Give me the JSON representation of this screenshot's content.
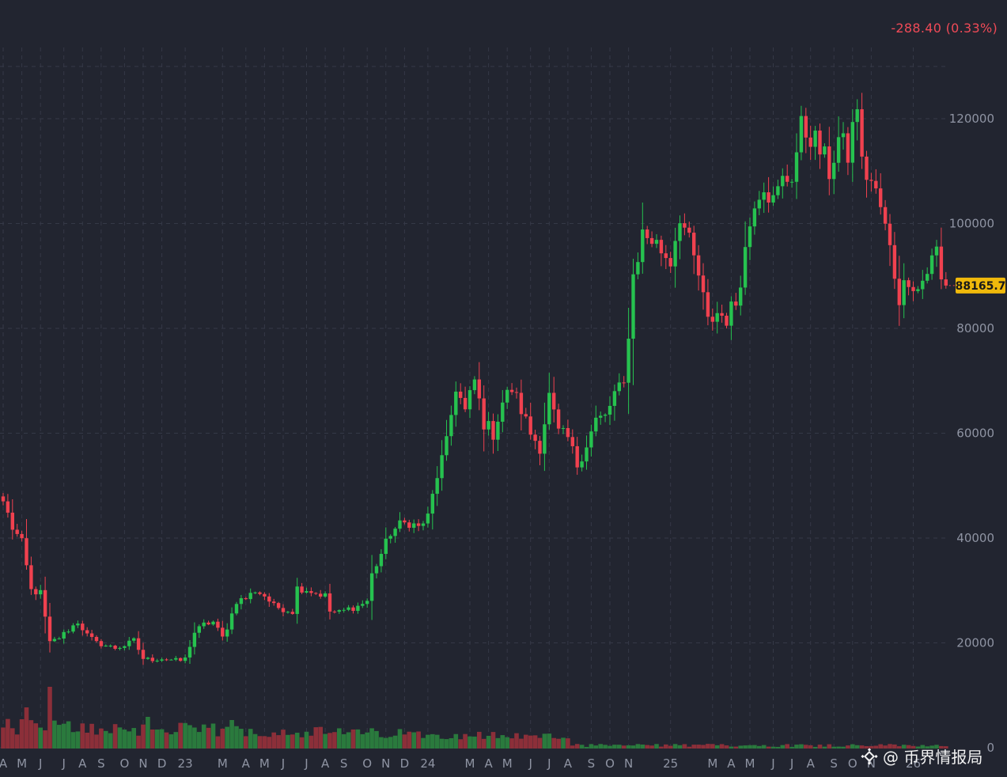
{
  "header": {
    "change_text": "-288.40 (0.33%)",
    "change_color": "#f04a57"
  },
  "watermark": {
    "text": "@ 币界情报局"
  },
  "colors": {
    "background": "#222530",
    "grid": "#353947",
    "up": "#26c24f",
    "down": "#f0414f",
    "axis_text": "#8f94a3",
    "price_badge_bg": "#f0b90b",
    "price_badge_text": "#1a1a1a"
  },
  "chart_data": {
    "type": "candlestick",
    "interval": "weekly",
    "ylim": [
      -5000,
      145000
    ],
    "y_ticks": [
      0,
      20000,
      40000,
      60000,
      80000,
      100000,
      120000
    ],
    "y_tick_labels": [
      "0",
      "20000",
      "40000",
      "60000",
      "80000",
      "100000",
      "120000"
    ],
    "last_price": 88165.7,
    "last_price_label": "88165.7",
    "x_ticks": [
      {
        "label": "A",
        "week": 0
      },
      {
        "label": "M",
        "week": 4
      },
      {
        "label": "J",
        "week": 8
      },
      {
        "label": "J",
        "week": 13
      },
      {
        "label": "A",
        "week": 17
      },
      {
        "label": "S",
        "week": 21
      },
      {
        "label": "O",
        "week": 26
      },
      {
        "label": "N",
        "week": 30
      },
      {
        "label": "D",
        "week": 34
      },
      {
        "label": "23",
        "week": 39
      },
      {
        "label": "M",
        "week": 47
      },
      {
        "label": "A",
        "week": 52
      },
      {
        "label": "M",
        "week": 56
      },
      {
        "label": "J",
        "week": 60
      },
      {
        "label": "J",
        "week": 65
      },
      {
        "label": "A",
        "week": 69
      },
      {
        "label": "S",
        "week": 73
      },
      {
        "label": "O",
        "week": 78
      },
      {
        "label": "N",
        "week": 82
      },
      {
        "label": "D",
        "week": 86
      },
      {
        "label": "24",
        "week": 91
      },
      {
        "label": "M",
        "week": 100
      },
      {
        "label": "A",
        "week": 104
      },
      {
        "label": "M",
        "week": 108
      },
      {
        "label": "J",
        "week": 113
      },
      {
        "label": "J",
        "week": 117
      },
      {
        "label": "A",
        "week": 121
      },
      {
        "label": "S",
        "week": 126
      },
      {
        "label": "O",
        "week": 130
      },
      {
        "label": "N",
        "week": 134
      },
      {
        "label": "25",
        "week": 143
      },
      {
        "label": "M",
        "week": 152
      },
      {
        "label": "A",
        "week": 156
      },
      {
        "label": "M",
        "week": 160
      },
      {
        "label": "J",
        "week": 165
      },
      {
        "label": "J",
        "week": 169
      },
      {
        "label": "A",
        "week": 173
      },
      {
        "label": "S",
        "week": 178
      },
      {
        "label": "O",
        "week": 182
      },
      {
        "label": "N",
        "week": 186
      },
      {
        "label": "26",
        "week": 195
      }
    ],
    "anchors": [
      [
        0,
        47000
      ],
      [
        2,
        42000
      ],
      [
        4,
        39000
      ],
      [
        6,
        30000
      ],
      [
        8,
        29500
      ],
      [
        10,
        20000
      ],
      [
        12,
        21000
      ],
      [
        14,
        22500
      ],
      [
        16,
        24000
      ],
      [
        18,
        21500
      ],
      [
        20,
        20000
      ],
      [
        22,
        19500
      ],
      [
        24,
        19000
      ],
      [
        26,
        19500
      ],
      [
        28,
        20500
      ],
      [
        30,
        17000
      ],
      [
        32,
        16800
      ],
      [
        34,
        17000
      ],
      [
        36,
        16800
      ],
      [
        38,
        16600
      ],
      [
        39,
        17000
      ],
      [
        41,
        22000
      ],
      [
        43,
        23500
      ],
      [
        45,
        24000
      ],
      [
        47,
        21000
      ],
      [
        48,
        23000
      ],
      [
        50,
        28000
      ],
      [
        52,
        28500
      ],
      [
        54,
        30000
      ],
      [
        56,
        29000
      ],
      [
        58,
        27000
      ],
      [
        60,
        26500
      ],
      [
        62,
        26000
      ],
      [
        63,
        30500
      ],
      [
        65,
        30200
      ],
      [
        67,
        29500
      ],
      [
        69,
        29000
      ],
      [
        70,
        26000
      ],
      [
        72,
        25800
      ],
      [
        74,
        26500
      ],
      [
        76,
        27000
      ],
      [
        78,
        28000
      ],
      [
        79,
        33000
      ],
      [
        81,
        37000
      ],
      [
        83,
        41000
      ],
      [
        85,
        42500
      ],
      [
        87,
        43000
      ],
      [
        89,
        42000
      ],
      [
        91,
        44000
      ],
      [
        93,
        52000
      ],
      [
        95,
        58000
      ],
      [
        97,
        69000
      ],
      [
        99,
        64000
      ],
      [
        101,
        70000
      ],
      [
        103,
        62000
      ],
      [
        105,
        60000
      ],
      [
        107,
        66000
      ],
      [
        109,
        68500
      ],
      [
        111,
        64500
      ],
      [
        113,
        60000
      ],
      [
        115,
        57500
      ],
      [
        117,
        67000
      ],
      [
        119,
        60000
      ],
      [
        121,
        59000
      ],
      [
        123,
        54000
      ],
      [
        125,
        58000
      ],
      [
        127,
        62500
      ],
      [
        129,
        63000
      ],
      [
        131,
        67500
      ],
      [
        133,
        69000
      ],
      [
        135,
        90000
      ],
      [
        137,
        98000
      ],
      [
        139,
        97000
      ],
      [
        141,
        95000
      ],
      [
        143,
        93000
      ],
      [
        145,
        102000
      ],
      [
        147,
        96000
      ],
      [
        149,
        90000
      ],
      [
        151,
        81000
      ],
      [
        153,
        83000
      ],
      [
        155,
        82000
      ],
      [
        157,
        85000
      ],
      [
        159,
        95000
      ],
      [
        161,
        105000
      ],
      [
        163,
        108000
      ],
      [
        165,
        104000
      ],
      [
        167,
        108000
      ],
      [
        169,
        109500
      ],
      [
        171,
        118000
      ],
      [
        173,
        117000
      ],
      [
        175,
        114000
      ],
      [
        177,
        110000
      ],
      [
        179,
        116000
      ],
      [
        181,
        113000
      ],
      [
        183,
        123000
      ],
      [
        184,
        111000
      ],
      [
        186,
        108000
      ],
      [
        188,
        103000
      ],
      [
        190,
        95000
      ],
      [
        192,
        86000
      ],
      [
        194,
        90000
      ],
      [
        196,
        87500
      ],
      [
        198,
        91000
      ],
      [
        200,
        95000
      ],
      [
        201,
        89000
      ],
      [
        202,
        88165.7
      ]
    ]
  }
}
